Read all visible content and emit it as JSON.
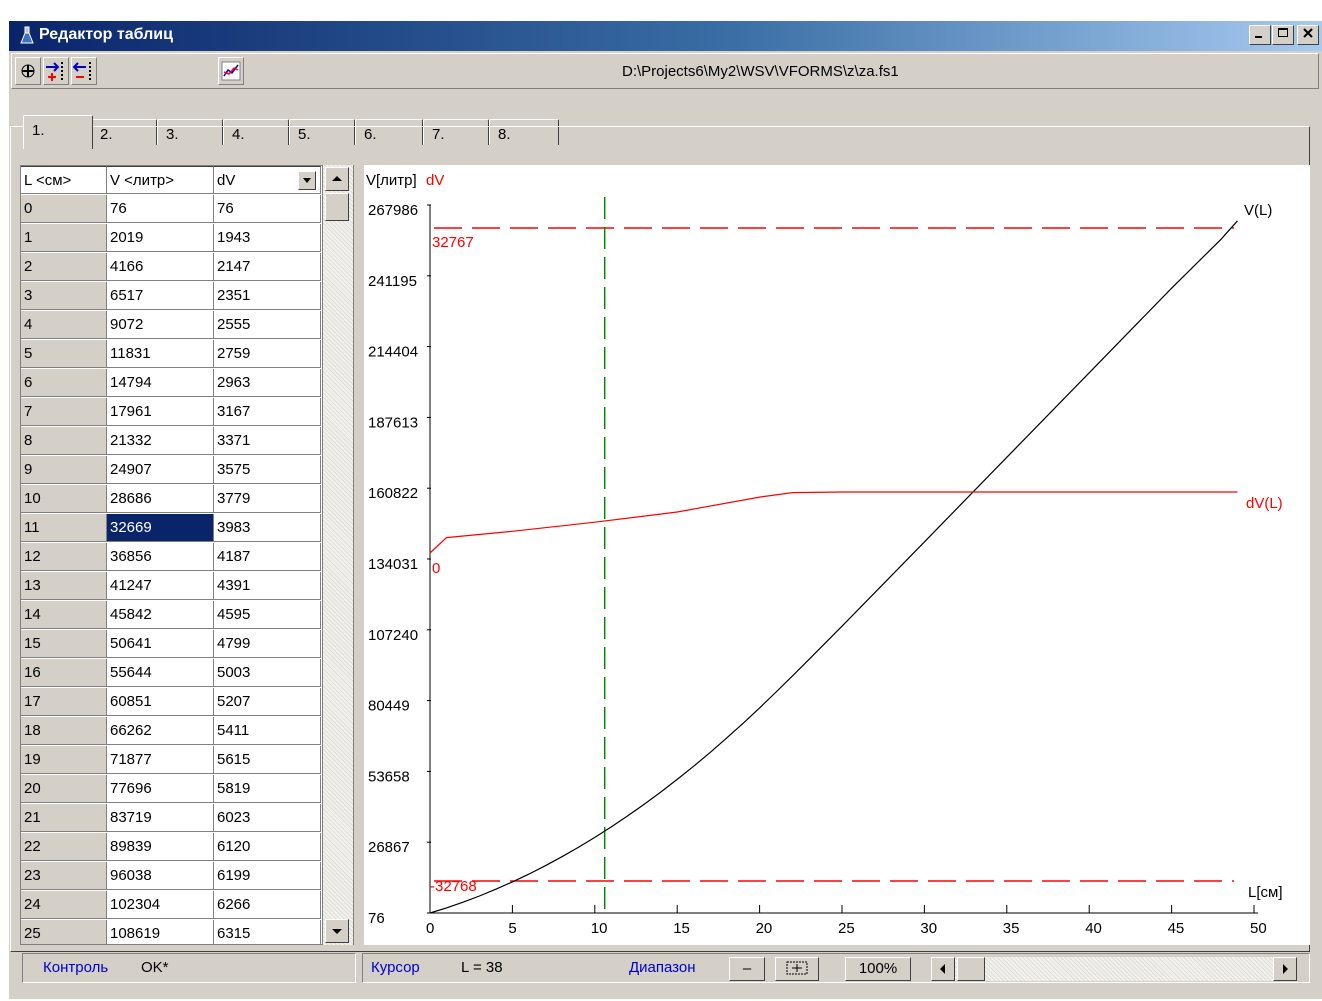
{
  "window": {
    "title": "Редактор таблиц"
  },
  "toolbar": {
    "path": "D:\\Projects6\\My2\\WSV\\VFORMS\\z\\za.fs1"
  },
  "tabs": [
    "1.",
    "2.",
    "3.",
    "4.",
    "5.",
    "6.",
    "7.",
    "8."
  ],
  "grid": {
    "headers": [
      "L <см>",
      "V <литр>",
      "dV"
    ],
    "rows": [
      [
        "0",
        "76",
        "76"
      ],
      [
        "1",
        "2019",
        "1943"
      ],
      [
        "2",
        "4166",
        "2147"
      ],
      [
        "3",
        "6517",
        "2351"
      ],
      [
        "4",
        "9072",
        "2555"
      ],
      [
        "5",
        "11831",
        "2759"
      ],
      [
        "6",
        "14794",
        "2963"
      ],
      [
        "7",
        "17961",
        "3167"
      ],
      [
        "8",
        "21332",
        "3371"
      ],
      [
        "9",
        "24907",
        "3575"
      ],
      [
        "10",
        "28686",
        "3779"
      ],
      [
        "11",
        "32669",
        "3983"
      ],
      [
        "12",
        "36856",
        "4187"
      ],
      [
        "13",
        "41247",
        "4391"
      ],
      [
        "14",
        "45842",
        "4595"
      ],
      [
        "15",
        "50641",
        "4799"
      ],
      [
        "16",
        "55644",
        "5003"
      ],
      [
        "17",
        "60851",
        "5207"
      ],
      [
        "18",
        "66262",
        "5411"
      ],
      [
        "19",
        "71877",
        "5615"
      ],
      [
        "20",
        "77696",
        "5819"
      ],
      [
        "21",
        "83719",
        "6023"
      ],
      [
        "22",
        "89839",
        "6120"
      ],
      [
        "23",
        "96038",
        "6199"
      ],
      [
        "24",
        "102304",
        "6266"
      ],
      [
        "25",
        "108619",
        "6315"
      ]
    ],
    "selected_row": 11
  },
  "chart_data": {
    "type": "line",
    "ylabel": "V[литр]",
    "ylabel2": "dV",
    "xlabel": "L[см]",
    "x_ticks": [
      0,
      5,
      10,
      15,
      20,
      25,
      30,
      35,
      40,
      45,
      50
    ],
    "y_ticks": [
      "76",
      "26867",
      "53658",
      "80449",
      "107240",
      "134031",
      "160822",
      "187613",
      "214404",
      "241195",
      "267986"
    ],
    "y_range": [
      76,
      267986
    ],
    "x_range": [
      0,
      50
    ],
    "dv_range": [
      -32768,
      32767
    ],
    "dv_ref_labels": [
      "32767",
      "0",
      "-32768"
    ],
    "cursor_x": 10.6,
    "series": [
      {
        "name": "V(L)",
        "color": "#000000",
        "x": [
          0,
          1,
          2,
          3,
          4,
          5,
          6,
          7,
          8,
          9,
          10,
          11,
          12,
          13,
          14,
          15,
          16,
          17,
          18,
          19,
          20,
          21,
          22,
          23,
          24,
          25,
          30,
          35,
          40,
          45,
          48,
          49
        ],
        "y": [
          76,
          2019,
          4166,
          6517,
          9072,
          11831,
          14794,
          17961,
          21332,
          24907,
          28686,
          32669,
          36856,
          41247,
          45842,
          50641,
          55644,
          60851,
          66262,
          71877,
          77696,
          83719,
          89839,
          96038,
          102304,
          108619,
          140500,
          172500,
          204500,
          236500,
          255000,
          262000
        ]
      },
      {
        "name": "dV(L)",
        "color": "#ff0000",
        "x": [
          0,
          1,
          5,
          10,
          15,
          20,
          22,
          25,
          30,
          35,
          40,
          45,
          49
        ],
        "y": [
          0,
          2700,
          3800,
          5400,
          7200,
          9800,
          10600,
          10700,
          10700,
          10700,
          10700,
          10700,
          10700
        ]
      }
    ]
  },
  "status": {
    "control_label": "Контроль",
    "control_value": "OK*",
    "cursor_label": "Курсор",
    "cursor_value": "L = 38",
    "range_label": "Диапазон",
    "minus": "–",
    "zoom": "100%"
  }
}
